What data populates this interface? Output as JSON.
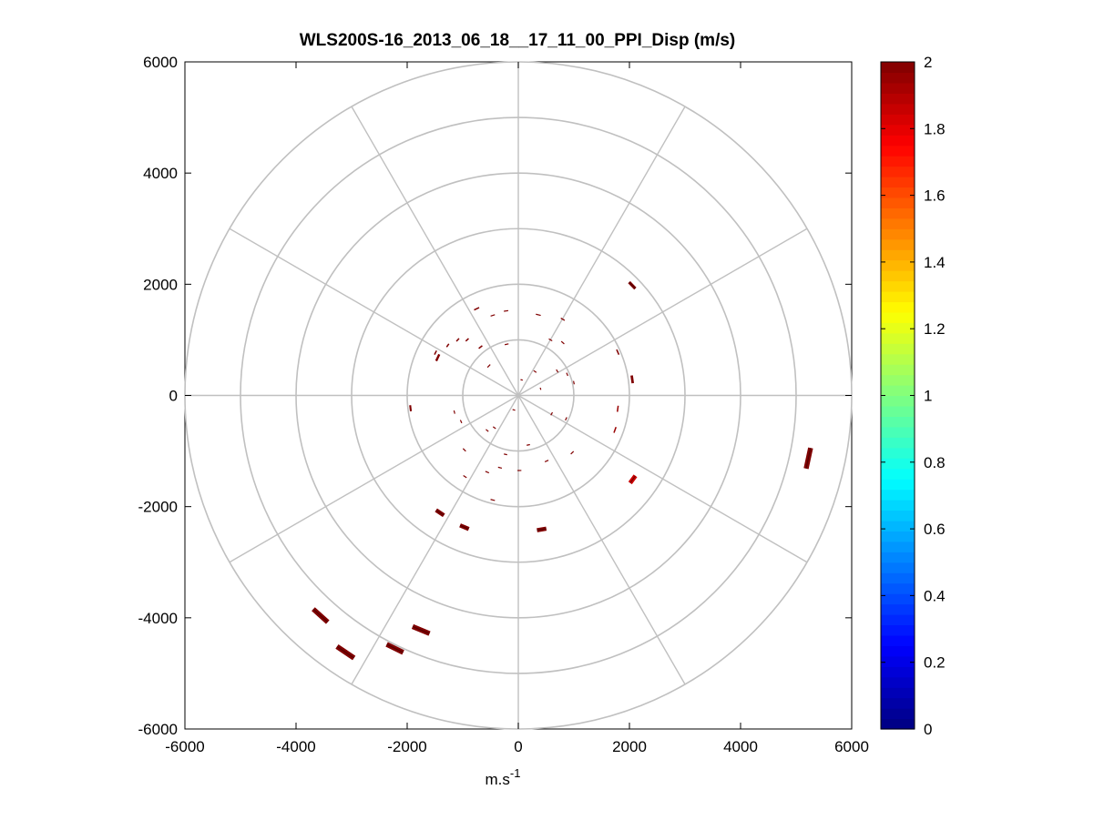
{
  "chart_data": {
    "type": "scatter",
    "title": "WLS200S-16_2013_06_18__17_11_00_PPI_Disp (m/s)",
    "xlabel": "m.s",
    "xlabel_superscript": "-1",
    "ylabel": "",
    "xlim": [
      -6000,
      6000
    ],
    "ylim": [
      -6000,
      6000
    ],
    "xticks": [
      -6000,
      -4000,
      -2000,
      0,
      2000,
      4000,
      6000
    ],
    "yticks": [
      -6000,
      -4000,
      -2000,
      0,
      2000,
      4000,
      6000
    ],
    "polar_grid": {
      "rings": [
        1000,
        2000,
        3000,
        4000,
        5000,
        6000
      ],
      "spoke_angles_deg": [
        0,
        30,
        60,
        90,
        120,
        150,
        180,
        210,
        240,
        270,
        300,
        330
      ]
    },
    "colorbar": {
      "colormap": "jet",
      "min": 0,
      "max": 2,
      "ticks": [
        0,
        0.2,
        0.4,
        0.6,
        0.8,
        1,
        1.2,
        1.4,
        1.6,
        1.8,
        2
      ]
    },
    "points": [
      {
        "x": 2050,
        "y": 1980,
        "v": 2.0,
        "len": 160,
        "w": 55
      },
      {
        "x": 1790,
        "y": 780,
        "v": 2.0,
        "len": 100,
        "w": 25
      },
      {
        "x": 2050,
        "y": 290,
        "v": 2.0,
        "len": 140,
        "w": 45
      },
      {
        "x": 1790,
        "y": -240,
        "v": 1.95,
        "len": 110,
        "w": 25
      },
      {
        "x": 1740,
        "y": -620,
        "v": 1.95,
        "len": 110,
        "w": 25
      },
      {
        "x": 5220,
        "y": -1130,
        "v": 2.0,
        "len": 380,
        "w": 90
      },
      {
        "x": 2060,
        "y": -1510,
        "v": 1.85,
        "len": 160,
        "w": 80
      },
      {
        "x": 420,
        "y": -2410,
        "v": 2.0,
        "len": 170,
        "w": 75
      },
      {
        "x": -970,
        "y": -2370,
        "v": 2.0,
        "len": 170,
        "w": 75
      },
      {
        "x": -1410,
        "y": -2110,
        "v": 2.0,
        "len": 170,
        "w": 75
      },
      {
        "x": -1750,
        "y": -4220,
        "v": 2.0,
        "len": 330,
        "w": 90
      },
      {
        "x": -2220,
        "y": -4550,
        "v": 2.0,
        "len": 330,
        "w": 90
      },
      {
        "x": -3560,
        "y": -3960,
        "v": 2.0,
        "len": 350,
        "w": 90
      },
      {
        "x": -3110,
        "y": -4620,
        "v": 2.0,
        "len": 370,
        "w": 95
      },
      {
        "x": -1940,
        "y": -230,
        "v": 2.0,
        "len": 110,
        "w": 35
      },
      {
        "x": -1450,
        "y": 680,
        "v": 2.0,
        "len": 130,
        "w": 40
      },
      {
        "x": -1490,
        "y": 770,
        "v": 2.0,
        "len": 80,
        "w": 25
      },
      {
        "x": -1270,
        "y": 900,
        "v": 2.0,
        "len": 70,
        "w": 25
      },
      {
        "x": -1090,
        "y": 1000,
        "v": 2.0,
        "len": 70,
        "w": 25
      },
      {
        "x": -920,
        "y": 1000,
        "v": 2.0,
        "len": 70,
        "w": 25
      },
      {
        "x": -680,
        "y": 870,
        "v": 2.0,
        "len": 80,
        "w": 25
      },
      {
        "x": -750,
        "y": 1560,
        "v": 2.0,
        "len": 100,
        "w": 25
      },
      {
        "x": -460,
        "y": 1440,
        "v": 2.0,
        "len": 80,
        "w": 20
      },
      {
        "x": -220,
        "y": 1520,
        "v": 2.0,
        "len": 80,
        "w": 20
      },
      {
        "x": 360,
        "y": 1450,
        "v": 2.0,
        "len": 90,
        "w": 20
      },
      {
        "x": 800,
        "y": 1370,
        "v": 2.0,
        "len": 80,
        "w": 20
      },
      {
        "x": 580,
        "y": 1000,
        "v": 2.0,
        "len": 70,
        "w": 20
      },
      {
        "x": 800,
        "y": 950,
        "v": 2.0,
        "len": 70,
        "w": 20
      },
      {
        "x": -530,
        "y": 530,
        "v": 2.0,
        "len": 70,
        "w": 20
      },
      {
        "x": -210,
        "y": 920,
        "v": 2.0,
        "len": 70,
        "w": 20
      },
      {
        "x": 300,
        "y": 430,
        "v": 2.0,
        "len": 60,
        "w": 15
      },
      {
        "x": 700,
        "y": 440,
        "v": 2.0,
        "len": 60,
        "w": 15
      },
      {
        "x": 880,
        "y": 380,
        "v": 2.0,
        "len": 60,
        "w": 15
      },
      {
        "x": 1000,
        "y": 230,
        "v": 2.0,
        "len": 60,
        "w": 15
      },
      {
        "x": -1150,
        "y": -300,
        "v": 2.0,
        "len": 60,
        "w": 15
      },
      {
        "x": -1030,
        "y": -470,
        "v": 2.0,
        "len": 60,
        "w": 15
      },
      {
        "x": -560,
        "y": -630,
        "v": 2.0,
        "len": 60,
        "w": 15
      },
      {
        "x": -430,
        "y": -580,
        "v": 2.0,
        "len": 60,
        "w": 15
      },
      {
        "x": -970,
        "y": -980,
        "v": 2.0,
        "len": 70,
        "w": 20
      },
      {
        "x": 180,
        "y": -890,
        "v": 2.0,
        "len": 60,
        "w": 15
      },
      {
        "x": 600,
        "y": -330,
        "v": 2.0,
        "len": 60,
        "w": 15
      },
      {
        "x": 860,
        "y": -420,
        "v": 2.0,
        "len": 60,
        "w": 15
      },
      {
        "x": -960,
        "y": -1460,
        "v": 2.0,
        "len": 70,
        "w": 20
      },
      {
        "x": -560,
        "y": -1380,
        "v": 2.0,
        "len": 70,
        "w": 20
      },
      {
        "x": -330,
        "y": -1300,
        "v": 2.0,
        "len": 70,
        "w": 20
      },
      {
        "x": 20,
        "y": -1350,
        "v": 2.0,
        "len": 70,
        "w": 20
      },
      {
        "x": 510,
        "y": -1180,
        "v": 2.0,
        "len": 70,
        "w": 20
      },
      {
        "x": 970,
        "y": -1030,
        "v": 2.0,
        "len": 70,
        "w": 20
      },
      {
        "x": -460,
        "y": -1880,
        "v": 2.0,
        "len": 80,
        "w": 20
      },
      {
        "x": -230,
        "y": -1060,
        "v": 2.0,
        "len": 60,
        "w": 15
      },
      {
        "x": -80,
        "y": -260,
        "v": 2.0,
        "len": 50,
        "w": 12
      },
      {
        "x": 60,
        "y": 280,
        "v": 2.0,
        "len": 40,
        "w": 12
      },
      {
        "x": 400,
        "y": 120,
        "v": 2.0,
        "len": 40,
        "w": 12
      }
    ]
  }
}
